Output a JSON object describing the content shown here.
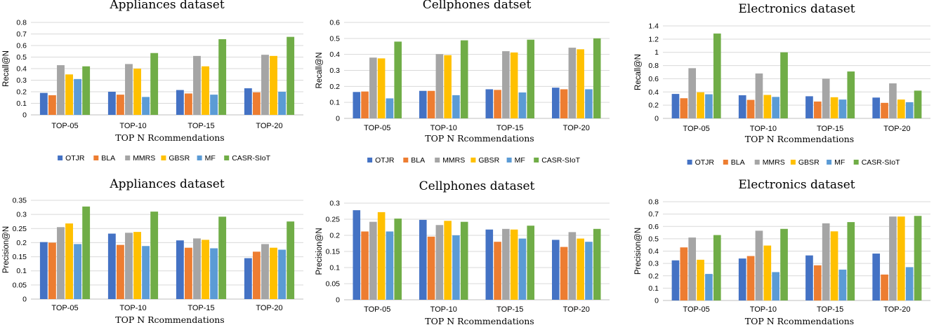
{
  "colors": {
    "OTJR": "#4472C4",
    "BLA": "#ED7D31",
    "MMRS": "#A5A5A5",
    "GBSR": "#FFC000",
    "MF": "#5B9BD5",
    "CASR-SIoT": "#70AD47"
  },
  "chart_data": [
    {
      "type": "bar",
      "title": "Appliances dataset",
      "xlabel": "TOP N Rcommendations",
      "ylabel": "Recall@N",
      "ylim": [
        0,
        0.8
      ],
      "yticks": [
        "0",
        "0.1",
        "0.2",
        "0.3",
        "0.4",
        "0.5",
        "0.6",
        "0.7",
        "0.8"
      ],
      "categories": [
        "TOP-05",
        "TOP-10",
        "TOP-15",
        "TOP-20"
      ],
      "legend_position": "bottom",
      "grid": true,
      "series": [
        {
          "name": "OTJR",
          "values": [
            0.19,
            0.2,
            0.215,
            0.23
          ]
        },
        {
          "name": "BLA",
          "values": [
            0.17,
            0.175,
            0.185,
            0.195
          ]
        },
        {
          "name": "MMRS",
          "values": [
            0.43,
            0.44,
            0.51,
            0.52
          ]
        },
        {
          "name": "GBSR",
          "values": [
            0.35,
            0.4,
            0.42,
            0.51
          ]
        },
        {
          "name": "MF",
          "values": [
            0.31,
            0.155,
            0.175,
            0.2
          ]
        },
        {
          "name": "CASR-SIoT",
          "values": [
            0.42,
            0.535,
            0.655,
            0.675
          ]
        }
      ]
    },
    {
      "type": "bar",
      "title": "Cellphones datset",
      "xlabel": "TOP N Rcommendations",
      "ylabel": "Recall@N",
      "ylim": [
        0,
        0.6
      ],
      "yticks": [
        "0",
        "0.1",
        "0.2",
        "0.3",
        "0.4",
        "0.5",
        "0.6"
      ],
      "categories": [
        "TOP-05",
        "TOP-10",
        "TOP-15",
        "TOP-20"
      ],
      "legend_position": "bottom",
      "grid": true,
      "series": [
        {
          "name": "OTJR",
          "values": [
            0.165,
            0.172,
            0.182,
            0.192
          ]
        },
        {
          "name": "BLA",
          "values": [
            0.168,
            0.172,
            0.178,
            0.182
          ]
        },
        {
          "name": "MMRS",
          "values": [
            0.38,
            0.402,
            0.42,
            0.442
          ]
        },
        {
          "name": "GBSR",
          "values": [
            0.375,
            0.395,
            0.412,
            0.432
          ]
        },
        {
          "name": "MF",
          "values": [
            0.125,
            0.145,
            0.162,
            0.182
          ]
        },
        {
          "name": "CASR-SIoT",
          "values": [
            0.48,
            0.488,
            0.492,
            0.5
          ]
        }
      ]
    },
    {
      "type": "bar",
      "title": "Electronics dataset",
      "xlabel": "TOP N Rcommendations",
      "ylabel": "Recall@N",
      "ylim": [
        0,
        1.4
      ],
      "yticks": [
        "0",
        "0.2",
        "0.4",
        "0.6",
        "0.8",
        "1",
        "1.2",
        "1.4"
      ],
      "categories": [
        "TOP-05",
        "TOP-10",
        "TOP-15",
        "TOP-20"
      ],
      "legend_position": "bottom",
      "grid": true,
      "series": [
        {
          "name": "OTJR",
          "values": [
            0.37,
            0.35,
            0.335,
            0.315
          ]
        },
        {
          "name": "BLA",
          "values": [
            0.305,
            0.28,
            0.255,
            0.235
          ]
        },
        {
          "name": "MMRS",
          "values": [
            0.76,
            0.68,
            0.6,
            0.53
          ]
        },
        {
          "name": "GBSR",
          "values": [
            0.395,
            0.355,
            0.32,
            0.285
          ]
        },
        {
          "name": "MF",
          "values": [
            0.365,
            0.325,
            0.285,
            0.245
          ]
        },
        {
          "name": "CASR-SIoT",
          "values": [
            1.285,
            1.0,
            0.71,
            0.42
          ]
        }
      ]
    },
    {
      "type": "bar",
      "title": "Appliances dataset",
      "xlabel": "TOP N Rcommendations",
      "ylabel": "Precision@N",
      "ylim": [
        0,
        0.35
      ],
      "yticks": [
        "0",
        "0.05",
        "0.1",
        "0.15",
        "0.2",
        "0.25",
        "0.3",
        "0.35"
      ],
      "categories": [
        "TOP-05",
        "TOP-10",
        "TOP-15",
        "TOP-20"
      ],
      "legend_position": "none",
      "grid": true,
      "series": [
        {
          "name": "OTJR",
          "values": [
            0.202,
            0.232,
            0.208,
            0.145
          ]
        },
        {
          "name": "BLA",
          "values": [
            0.2,
            0.192,
            0.182,
            0.168
          ]
        },
        {
          "name": "MMRS",
          "values": [
            0.255,
            0.235,
            0.215,
            0.195
          ]
        },
        {
          "name": "GBSR",
          "values": [
            0.268,
            0.238,
            0.21,
            0.182
          ]
        },
        {
          "name": "MF",
          "values": [
            0.195,
            0.188,
            0.18,
            0.175
          ]
        },
        {
          "name": "CASR-SIoT",
          "values": [
            0.328,
            0.31,
            0.292,
            0.275
          ]
        }
      ]
    },
    {
      "type": "bar",
      "title": "Cellphones dataset",
      "xlabel": "TOP N Rcommendations",
      "ylabel": "Precision@N",
      "ylim": [
        0,
        0.3
      ],
      "yticks": [
        "0",
        "0.05",
        "0.1",
        "0.15",
        "0.2",
        "0.25",
        "0.3"
      ],
      "categories": [
        "TOP-05",
        "TOP-10",
        "TOP-15",
        "TOP-20"
      ],
      "legend_position": "none",
      "grid": true,
      "series": [
        {
          "name": "OTJR",
          "values": [
            0.278,
            0.248,
            0.218,
            0.186
          ]
        },
        {
          "name": "BLA",
          "values": [
            0.212,
            0.196,
            0.18,
            0.164
          ]
        },
        {
          "name": "MMRS",
          "values": [
            0.242,
            0.232,
            0.22,
            0.21
          ]
        },
        {
          "name": "GBSR",
          "values": [
            0.272,
            0.245,
            0.218,
            0.19
          ]
        },
        {
          "name": "MF",
          "values": [
            0.212,
            0.2,
            0.19,
            0.18
          ]
        },
        {
          "name": "CASR-SIoT",
          "values": [
            0.252,
            0.242,
            0.23,
            0.22
          ]
        }
      ]
    },
    {
      "type": "bar",
      "title": "Electronics dataset",
      "xlabel": "TOP N Rcommendations",
      "ylabel": "Precision@N",
      "ylim": [
        0,
        0.8
      ],
      "yticks": [
        "0",
        "0.1",
        "0.2",
        "0.3",
        "0.4",
        "0.5",
        "0.6",
        "0.7",
        "0.8"
      ],
      "categories": [
        "TOP-05",
        "TOP-10",
        "TOP-15",
        "TOP-20"
      ],
      "legend_position": "none",
      "grid": true,
      "series": [
        {
          "name": "OTJR",
          "values": [
            0.325,
            0.34,
            0.365,
            0.38
          ]
        },
        {
          "name": "BLA",
          "values": [
            0.43,
            0.36,
            0.285,
            0.21
          ]
        },
        {
          "name": "MMRS",
          "values": [
            0.51,
            0.565,
            0.625,
            0.68
          ]
        },
        {
          "name": "GBSR",
          "values": [
            0.33,
            0.445,
            0.56,
            0.68
          ]
        },
        {
          "name": "MF",
          "values": [
            0.215,
            0.23,
            0.25,
            0.27
          ]
        },
        {
          "name": "CASR-SIoT",
          "values": [
            0.53,
            0.58,
            0.635,
            0.685
          ]
        }
      ]
    }
  ]
}
